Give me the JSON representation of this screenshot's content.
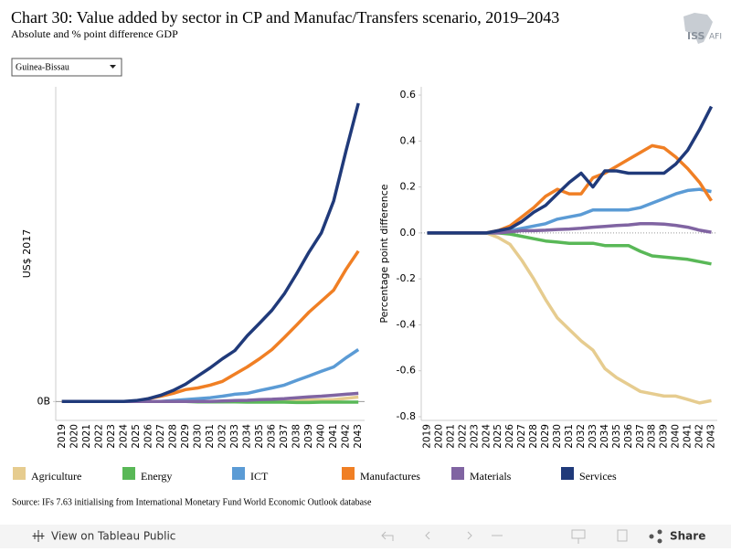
{
  "header": {
    "title": "Chart 30: Value added by sector in CP and Manufac/Transfers scenario, 2019–2043",
    "subtitle": "Absolute and % point difference GDP",
    "logo_left": "ISS",
    "logo_right": "AFI"
  },
  "dropdown": "Guinea-Bissau",
  "source": "Source: IFs 7.63 initialising from International Monetary Fund World Economic Outlook database",
  "toolbar": {
    "view": "View on Tableau Public",
    "share": "Share"
  },
  "chart_data": [
    {
      "type": "line",
      "y_label": "US$ 2017",
      "x": [
        2019,
        2020,
        2021,
        2022,
        2023,
        2024,
        2025,
        2026,
        2027,
        2028,
        2029,
        2030,
        2031,
        2032,
        2033,
        2034,
        2035,
        2036,
        2037,
        2038,
        2039,
        2040,
        2041,
        2042,
        2043
      ],
      "xlim": [
        2018.5,
        2043.5
      ],
      "ylim": [
        -0.06,
        1.0
      ],
      "yticks": [
        {
          "value": 0,
          "label": "0B"
        }
      ],
      "series": [
        {
          "name": "Agriculture",
          "color": "#e6cc8f",
          "values": [
            0,
            0,
            0,
            0,
            0,
            0,
            0,
            0,
            0,
            0,
            0,
            0,
            0,
            0,
            0,
            0,
            0,
            0.002,
            0.003,
            0.004,
            0.005,
            0.005,
            0.006,
            0.01,
            0.014
          ]
        },
        {
          "name": "Energy",
          "color": "#59b857",
          "values": [
            0,
            0,
            0,
            0,
            0,
            0,
            0,
            0,
            0,
            0,
            0,
            -0.001,
            -0.001,
            -0.001,
            -0.001,
            -0.002,
            -0.002,
            -0.002,
            -0.002,
            -0.003,
            -0.003,
            -0.002,
            -0.002,
            -0.002,
            -0.002
          ]
        },
        {
          "name": "ICT",
          "color": "#5b9bd5",
          "values": [
            0,
            0,
            0,
            0,
            0,
            0,
            0,
            0,
            0,
            0.003,
            0.006,
            0.009,
            0.012,
            0.017,
            0.023,
            0.026,
            0.035,
            0.043,
            0.052,
            0.067,
            0.081,
            0.096,
            0.11,
            0.139,
            0.165
          ]
        },
        {
          "name": "Manufactures",
          "color": "#f07f24",
          "values": [
            0,
            0,
            0,
            0,
            0,
            0,
            0,
            0.009,
            0.017,
            0.026,
            0.038,
            0.043,
            0.052,
            0.064,
            0.087,
            0.11,
            0.136,
            0.165,
            0.203,
            0.243,
            0.284,
            0.319,
            0.354,
            0.42,
            0.478
          ]
        },
        {
          "name": "Materials",
          "color": "#8064a2",
          "values": [
            0,
            0,
            0,
            0,
            0,
            0,
            0,
            0,
            0,
            0,
            0,
            0,
            0,
            0.002,
            0.003,
            0.004,
            0.006,
            0.007,
            0.009,
            0.012,
            0.015,
            0.017,
            0.02,
            0.023,
            0.026
          ]
        },
        {
          "name": "Services",
          "color": "#203a7a",
          "values": [
            0,
            0,
            0,
            0,
            0,
            0,
            0.003,
            0.009,
            0.02,
            0.035,
            0.055,
            0.081,
            0.107,
            0.136,
            0.162,
            0.209,
            0.249,
            0.29,
            0.342,
            0.406,
            0.475,
            0.536,
            0.638,
            0.797,
            0.948
          ]
        }
      ]
    },
    {
      "type": "line",
      "y_label": "Percentage point difference",
      "x": [
        2019,
        2020,
        2021,
        2022,
        2023,
        2024,
        2025,
        2026,
        2027,
        2028,
        2029,
        2030,
        2031,
        2032,
        2033,
        2034,
        2035,
        2036,
        2037,
        2038,
        2039,
        2040,
        2041,
        2042,
        2043
      ],
      "xlim": [
        2018.5,
        2043.5
      ],
      "ylim": [
        -0.816,
        0.636
      ],
      "yticks": [
        0.6,
        0.4,
        0.2,
        {
          "value": 0,
          "label": "0.0"
        },
        -0.2,
        -0.4,
        -0.6,
        -0.8
      ],
      "series": [
        {
          "color": "#e6cc8f",
          "values": [
            0,
            0,
            0,
            0,
            0,
            0,
            -0.02,
            -0.05,
            -0.12,
            -0.2,
            -0.29,
            -0.37,
            -0.42,
            -0.47,
            -0.51,
            -0.59,
            -0.63,
            -0.66,
            -0.69,
            -0.7,
            -0.71,
            -0.71,
            -0.725,
            -0.74,
            -0.73
          ]
        },
        {
          "color": "#59b857",
          "values": [
            0,
            0,
            0,
            0,
            0,
            0,
            0,
            -0.005,
            -0.015,
            -0.025,
            -0.035,
            -0.04,
            -0.045,
            -0.045,
            -0.045,
            -0.055,
            -0.055,
            -0.055,
            -0.08,
            -0.1,
            -0.105,
            -0.11,
            -0.115,
            -0.125,
            -0.135
          ]
        },
        {
          "color": "#5b9bd5",
          "values": [
            0,
            0,
            0,
            0,
            0,
            0,
            0.005,
            0.01,
            0.02,
            0.03,
            0.04,
            0.06,
            0.07,
            0.08,
            0.1,
            0.1,
            0.1,
            0.1,
            0.11,
            0.13,
            0.15,
            0.17,
            0.185,
            0.19,
            0.18
          ]
        },
        {
          "color": "#f07f24",
          "values": [
            0,
            0,
            0,
            0,
            0,
            0,
            0.01,
            0.03,
            0.07,
            0.11,
            0.16,
            0.19,
            0.17,
            0.17,
            0.24,
            0.26,
            0.29,
            0.32,
            0.35,
            0.38,
            0.37,
            0.33,
            0.28,
            0.22,
            0.14
          ]
        },
        {
          "color": "#8064a2",
          "values": [
            0,
            0,
            0,
            0,
            0,
            0,
            0,
            0.005,
            0.01,
            0.01,
            0.012,
            0.015,
            0.017,
            0.02,
            0.025,
            0.028,
            0.032,
            0.035,
            0.04,
            0.04,
            0.038,
            0.033,
            0.025,
            0.012,
            0.003
          ]
        },
        {
          "color": "#203a7a",
          "values": [
            0,
            0,
            0,
            0,
            0,
            0,
            0.01,
            0.02,
            0.05,
            0.09,
            0.12,
            0.17,
            0.22,
            0.26,
            0.2,
            0.27,
            0.27,
            0.26,
            0.26,
            0.26,
            0.26,
            0.3,
            0.36,
            0.45,
            0.55
          ]
        }
      ]
    }
  ]
}
